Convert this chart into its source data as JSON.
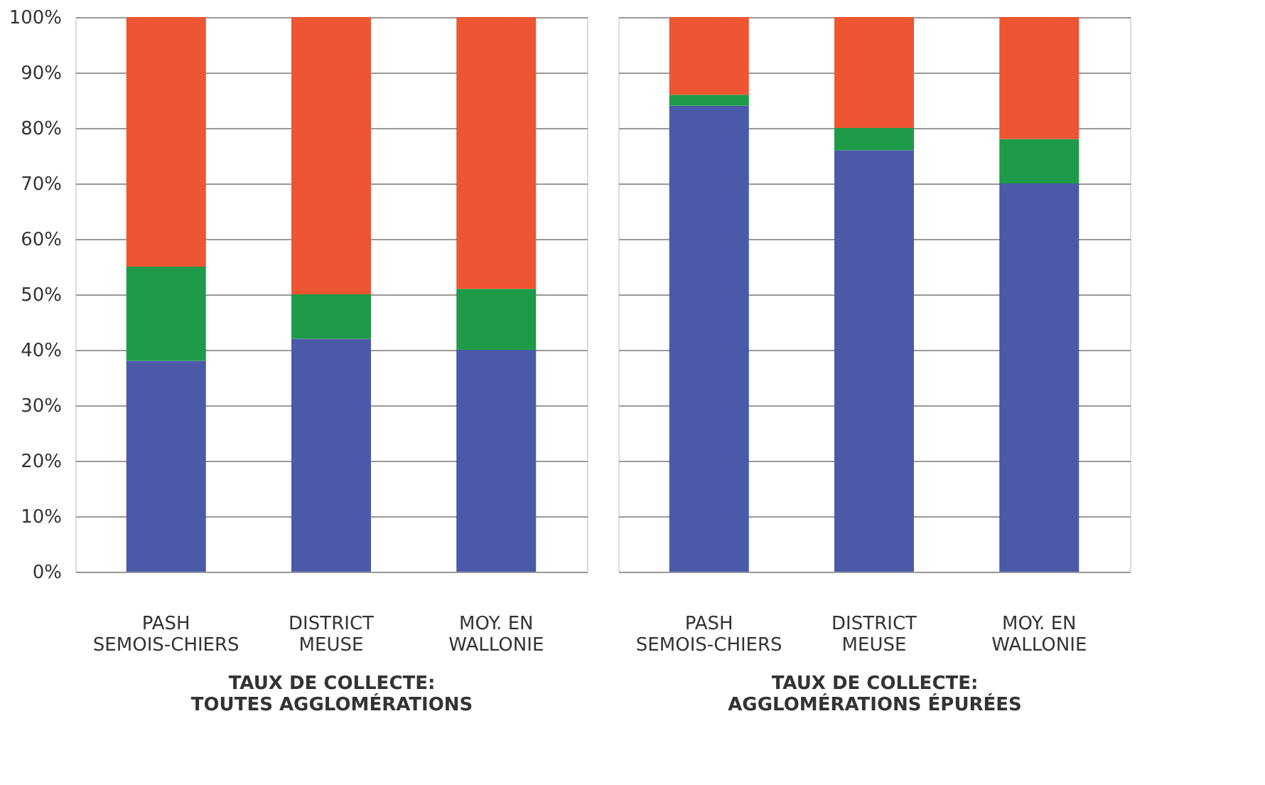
{
  "chart_data": [
    {
      "type": "bar",
      "stacked": true,
      "xlabel": "TAUX DE COLLECTE: TOUTES AGGLOMÉRATIONS",
      "categories": [
        "PASH SEMOIS-CHIERS",
        "DISTRICT MEUSE",
        "MOY. EN WALLONIE"
      ],
      "series": [
        {
          "color": "#4a5aa8",
          "values": [
            38,
            42,
            40
          ]
        },
        {
          "color": "#1e9a48",
          "values": [
            17,
            8,
            11
          ]
        },
        {
          "color": "#ee5533",
          "values": [
            45,
            50,
            49
          ]
        }
      ],
      "ylim": [
        0,
        100
      ],
      "yticks": [
        {
          "value": 0,
          "label": "0%"
        },
        {
          "value": 10,
          "label": "10%"
        },
        {
          "value": 20,
          "label": "20%"
        },
        {
          "value": 30,
          "label": "30%"
        },
        {
          "value": 40,
          "label": "40%"
        },
        {
          "value": 50,
          "label": "50%"
        },
        {
          "value": 60,
          "label": "60%"
        },
        {
          "value": 70,
          "label": "70%"
        },
        {
          "value": 80,
          "label": "80%"
        },
        {
          "value": 90,
          "label": "90%"
        },
        {
          "value": 100,
          "label": "100%"
        }
      ],
      "grid": "y"
    },
    {
      "type": "bar",
      "stacked": true,
      "xlabel": "TAUX DE COLLECTE: AGGLOMÉRATIONS ÉPURÉES",
      "categories": [
        "PASH SEMOIS-CHIERS",
        "DISTRICT MEUSE",
        "MOY. EN WALLONIE"
      ],
      "series": [
        {
          "color": "#4a5aa8",
          "values": [
            84,
            76,
            70
          ]
        },
        {
          "color": "#1e9a48",
          "values": [
            2,
            4,
            8
          ]
        },
        {
          "color": "#ee5533",
          "values": [
            14,
            20,
            22
          ]
        }
      ],
      "ylim": [
        0,
        100
      ],
      "yticks": [
        {
          "value": 0,
          "label": null
        },
        {
          "value": 10,
          "label": null
        },
        {
          "value": 20,
          "label": null
        },
        {
          "value": 30,
          "label": null
        },
        {
          "value": 40,
          "label": null
        },
        {
          "value": 50,
          "label": null
        },
        {
          "value": 60,
          "label": null
        },
        {
          "value": 70,
          "label": null
        },
        {
          "value": 80,
          "label": null
        },
        {
          "value": 90,
          "label": null
        },
        {
          "value": 100,
          "label": null
        }
      ],
      "grid": "y",
      "tick_labels": "x"
    }
  ]
}
